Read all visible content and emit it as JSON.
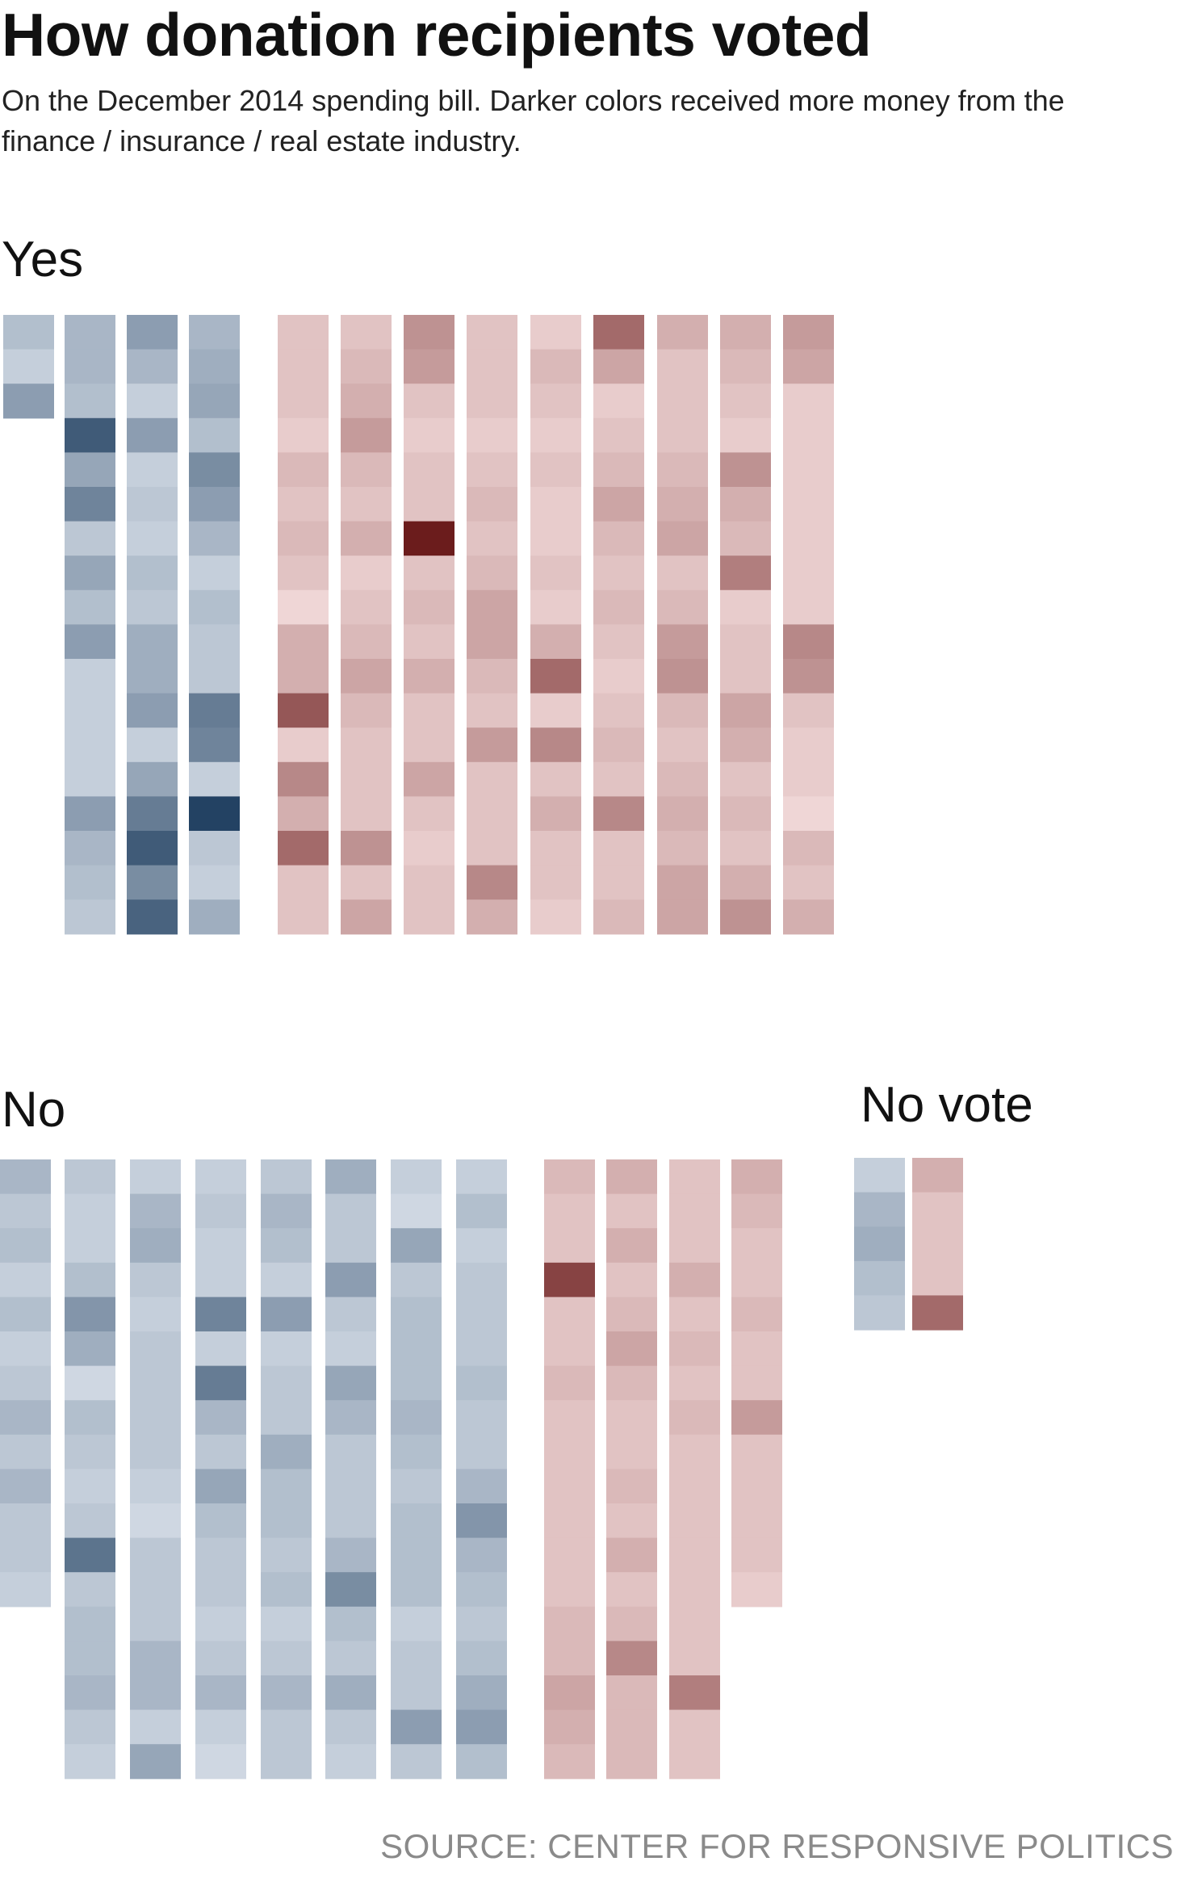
{
  "header": {
    "title": "How donation recipients voted",
    "subtitle": "On the December 2014 spending bill. Darker colors received more money from the finance / insurance / real estate industry."
  },
  "source": "SOURCE: CENTER FOR RESPONSIVE POLITICS",
  "colors": {
    "democrat": "#234263",
    "republican": "#6b1c1c",
    "base_dem": "#e2e8f0",
    "base_rep": "#f6e0e0"
  },
  "chart_data": {
    "type": "heatmap",
    "title": "How donation recipients voted",
    "value_meaning": "relative amount received from the finance / insurance / real estate industry (0 = least, 1 = most)",
    "groups": [
      {
        "label": "Yes",
        "democrat_columns": [
          [
            0.25,
            0.15,
            0.45
          ],
          [
            0.3,
            0.3,
            0.25,
            0.85,
            0.4,
            0.6,
            0.2,
            0.4,
            0.25,
            0.45,
            0.15,
            0.15,
            0.15,
            0.15,
            0.45,
            0.3,
            0.25,
            0.2
          ],
          [
            0.45,
            0.3,
            0.15,
            0.45,
            0.15,
            0.2,
            0.15,
            0.25,
            0.2,
            0.35,
            0.35,
            0.45,
            0.15,
            0.4,
            0.65,
            0.85,
            0.55,
            0.8
          ],
          [
            0.3,
            0.35,
            0.4,
            0.25,
            0.55,
            0.45,
            0.3,
            0.15,
            0.25,
            0.2,
            0.2,
            0.65,
            0.6,
            0.15,
            1.0,
            0.2,
            0.15,
            0.35
          ]
        ],
        "republican_columns": [
          [
            0.15,
            0.15,
            0.15,
            0.1,
            0.2,
            0.15,
            0.2,
            0.15,
            0.05,
            0.25,
            0.25,
            0.7,
            0.1,
            0.45,
            0.25,
            0.6,
            0.15,
            0.15
          ],
          [
            0.15,
            0.2,
            0.25,
            0.35,
            0.2,
            0.15,
            0.25,
            0.1,
            0.15,
            0.2,
            0.3,
            0.2,
            0.15,
            0.15,
            0.15,
            0.4,
            0.15,
            0.3
          ],
          [
            0.4,
            0.35,
            0.15,
            0.1,
            0.15,
            0.15,
            1.0,
            0.15,
            0.2,
            0.15,
            0.25,
            0.15,
            0.15,
            0.3,
            0.15,
            0.1,
            0.15,
            0.15
          ],
          [
            0.15,
            0.15,
            0.15,
            0.1,
            0.15,
            0.2,
            0.15,
            0.2,
            0.3,
            0.3,
            0.2,
            0.15,
            0.35,
            0.15,
            0.15,
            0.15,
            0.45,
            0.25
          ],
          [
            0.1,
            0.2,
            0.15,
            0.1,
            0.15,
            0.1,
            0.1,
            0.15,
            0.1,
            0.25,
            0.6,
            0.1,
            0.45,
            0.15,
            0.25,
            0.15,
            0.15,
            0.1
          ],
          [
            0.6,
            0.3,
            0.1,
            0.15,
            0.2,
            0.3,
            0.2,
            0.15,
            0.2,
            0.15,
            0.1,
            0.15,
            0.2,
            0.15,
            0.45,
            0.15,
            0.15,
            0.2
          ],
          [
            0.25,
            0.15,
            0.15,
            0.15,
            0.2,
            0.25,
            0.3,
            0.15,
            0.2,
            0.35,
            0.4,
            0.2,
            0.15,
            0.2,
            0.25,
            0.2,
            0.3,
            0.3
          ],
          [
            0.25,
            0.2,
            0.15,
            0.1,
            0.4,
            0.25,
            0.2,
            0.5,
            0.1,
            0.15,
            0.15,
            0.3,
            0.25,
            0.15,
            0.2,
            0.15,
            0.25,
            0.4
          ],
          [
            0.35,
            0.3,
            0.1,
            0.1,
            0.1,
            0.1,
            0.1,
            0.1,
            0.1,
            0.45,
            0.4,
            0.15,
            0.1,
            0.1,
            0.05,
            0.2,
            0.15,
            0.25
          ]
        ]
      },
      {
        "label": "No",
        "democrat_columns": [
          [
            0.3,
            0.2,
            0.25,
            0.15,
            0.25,
            0.15,
            0.2,
            0.3,
            0.2,
            0.3,
            0.2,
            0.2,
            0.15
          ],
          [
            0.2,
            0.15,
            0.15,
            0.25,
            0.5,
            0.35,
            0.1,
            0.25,
            0.2,
            0.15,
            0.2,
            0.7,
            0.2,
            0.25,
            0.25,
            0.3,
            0.2,
            0.15
          ],
          [
            0.15,
            0.3,
            0.35,
            0.2,
            0.15,
            0.2,
            0.2,
            0.2,
            0.2,
            0.15,
            0.1,
            0.2,
            0.2,
            0.2,
            0.3,
            0.3,
            0.15,
            0.4
          ],
          [
            0.15,
            0.2,
            0.15,
            0.15,
            0.6,
            0.15,
            0.65,
            0.3,
            0.2,
            0.4,
            0.25,
            0.2,
            0.2,
            0.15,
            0.2,
            0.3,
            0.15,
            0.1
          ],
          [
            0.2,
            0.3,
            0.25,
            0.15,
            0.45,
            0.15,
            0.2,
            0.2,
            0.35,
            0.25,
            0.25,
            0.2,
            0.25,
            0.15,
            0.2,
            0.3,
            0.2,
            0.2
          ],
          [
            0.35,
            0.2,
            0.2,
            0.45,
            0.2,
            0.15,
            0.4,
            0.3,
            0.2,
            0.2,
            0.2,
            0.3,
            0.55,
            0.25,
            0.2,
            0.35,
            0.2,
            0.15
          ],
          [
            0.15,
            0.1,
            0.4,
            0.2,
            0.25,
            0.25,
            0.25,
            0.3,
            0.25,
            0.2,
            0.25,
            0.25,
            0.25,
            0.15,
            0.2,
            0.2,
            0.45,
            0.2
          ],
          [
            0.15,
            0.25,
            0.15,
            0.2,
            0.2,
            0.2,
            0.25,
            0.2,
            0.2,
            0.3,
            0.5,
            0.3,
            0.25,
            0.2,
            0.25,
            0.35,
            0.45,
            0.25
          ]
        ],
        "republican_columns": [
          [
            0.2,
            0.15,
            0.15,
            0.8,
            0.15,
            0.15,
            0.2,
            0.15,
            0.15,
            0.15,
            0.15,
            0.15,
            0.15,
            0.2,
            0.2,
            0.3,
            0.25,
            0.2
          ],
          [
            0.25,
            0.15,
            0.25,
            0.15,
            0.2,
            0.3,
            0.2,
            0.15,
            0.15,
            0.2,
            0.15,
            0.25,
            0.15,
            0.2,
            0.45,
            0.2,
            0.2,
            0.2
          ],
          [
            0.15,
            0.15,
            0.15,
            0.25,
            0.15,
            0.2,
            0.15,
            0.2,
            0.15,
            0.15,
            0.15,
            0.15,
            0.15,
            0.15,
            0.15,
            0.5,
            0.15,
            0.15
          ],
          [
            0.25,
            0.2,
            0.15,
            0.15,
            0.2,
            0.15,
            0.15,
            0.35,
            0.15,
            0.15,
            0.15,
            0.15,
            0.1
          ]
        ]
      },
      {
        "label": "No vote",
        "democrat_columns": [
          [
            0.15,
            0.3,
            0.35,
            0.25,
            0.2
          ]
        ],
        "republican_columns": [
          [
            0.25,
            0.15,
            0.15,
            0.15,
            0.6
          ]
        ]
      }
    ]
  }
}
